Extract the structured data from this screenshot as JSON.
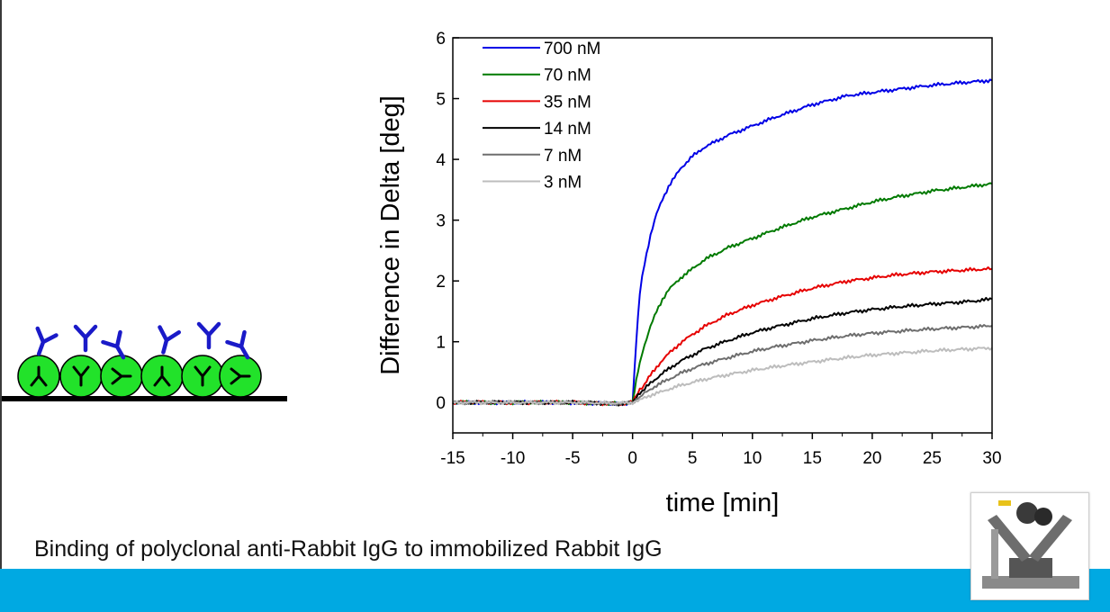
{
  "caption": "Binding of polyclonal anti-Rabbit IgG to immobilized Rabbit IgG",
  "colors": {
    "footer_bar": "#00a9e2",
    "antibody": "#1a1ac8",
    "bead": "#22e22a"
  },
  "chart_data": {
    "type": "line",
    "title": "",
    "xlabel": "time [min]",
    "ylabel": "Difference in Delta [deg]",
    "xlim": [
      -15,
      30
    ],
    "ylim": [
      -0.5,
      6
    ],
    "xticks": [
      -15,
      -10,
      -5,
      0,
      5,
      10,
      15,
      20,
      25,
      30
    ],
    "yticks": [
      0,
      1,
      2,
      3,
      4,
      5,
      6
    ],
    "grid": false,
    "legend": "top-left",
    "x": [
      -15,
      -10,
      -5,
      -1,
      0,
      0.3,
      0.6,
      1,
      1.5,
      2,
      2.5,
      3,
      4,
      5,
      6,
      8,
      10,
      12,
      15,
      18,
      20,
      22,
      25,
      28,
      30
    ],
    "series": [
      {
        "name": "700 nM",
        "color": "#0000e6",
        "values": [
          0,
          0,
          0,
          -0.03,
          0,
          1.0,
          1.8,
          2.3,
          2.75,
          3.1,
          3.35,
          3.55,
          3.85,
          4.05,
          4.2,
          4.4,
          4.55,
          4.7,
          4.9,
          5.05,
          5.1,
          5.15,
          5.22,
          5.27,
          5.3
        ]
      },
      {
        "name": "70 nM",
        "color": "#007a00",
        "values": [
          0,
          0,
          0,
          -0.02,
          0,
          0.35,
          0.65,
          0.95,
          1.25,
          1.5,
          1.7,
          1.85,
          2.05,
          2.2,
          2.35,
          2.55,
          2.7,
          2.85,
          3.05,
          3.2,
          3.3,
          3.38,
          3.48,
          3.55,
          3.6
        ]
      },
      {
        "name": "35 nM",
        "color": "#e60000",
        "values": [
          0,
          0,
          0,
          -0.02,
          0,
          0.1,
          0.2,
          0.3,
          0.45,
          0.58,
          0.7,
          0.8,
          0.98,
          1.12,
          1.25,
          1.45,
          1.6,
          1.72,
          1.88,
          2.0,
          2.05,
          2.1,
          2.15,
          2.18,
          2.2
        ]
      },
      {
        "name": "14 nM",
        "color": "#000000",
        "values": [
          0,
          0,
          0,
          -0.02,
          0,
          0.08,
          0.15,
          0.22,
          0.32,
          0.4,
          0.48,
          0.55,
          0.68,
          0.78,
          0.88,
          1.02,
          1.15,
          1.25,
          1.38,
          1.48,
          1.53,
          1.57,
          1.62,
          1.66,
          1.7
        ]
      },
      {
        "name": "7 nM",
        "color": "#6e6e6e",
        "values": [
          0,
          0,
          0,
          -0.02,
          0,
          0.05,
          0.1,
          0.15,
          0.22,
          0.28,
          0.33,
          0.38,
          0.48,
          0.56,
          0.63,
          0.74,
          0.84,
          0.92,
          1.02,
          1.1,
          1.14,
          1.17,
          1.21,
          1.24,
          1.26
        ]
      },
      {
        "name": "3 nM",
        "color": "#bdbdbd",
        "values": [
          0,
          0,
          0,
          -0.01,
          0,
          0.03,
          0.05,
          0.08,
          0.12,
          0.15,
          0.18,
          0.22,
          0.28,
          0.33,
          0.38,
          0.46,
          0.53,
          0.59,
          0.67,
          0.74,
          0.78,
          0.81,
          0.85,
          0.88,
          0.9
        ]
      }
    ]
  }
}
